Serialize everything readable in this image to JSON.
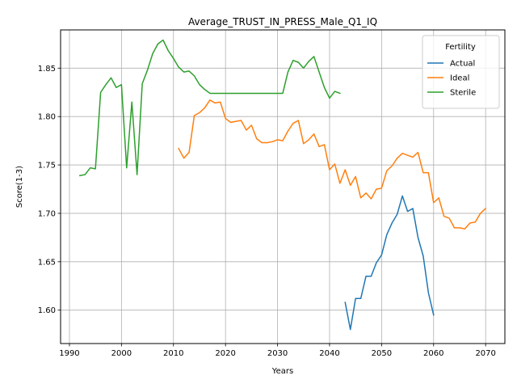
{
  "chart_data": {
    "type": "line",
    "title": "Average_TRUST_IN_PRESS_Male_Q1_IQ",
    "xlabel": "Years",
    "ylabel": "Score(1-3)",
    "xlim": [
      1988.3,
      2073.7
    ],
    "ylim": [
      1.5655,
      1.8895
    ],
    "xticks": [
      1990,
      2000,
      2010,
      2020,
      2030,
      2040,
      2050,
      2060,
      2070
    ],
    "yticks": [
      1.6,
      1.65,
      1.7,
      1.75,
      1.8,
      1.85
    ],
    "xtick_labels": [
      "1990",
      "2000",
      "2010",
      "2020",
      "2030",
      "2040",
      "2050",
      "2060",
      "2070"
    ],
    "ytick_labels": [
      "1.60",
      "1.65",
      "1.70",
      "1.75",
      "1.80",
      "1.85"
    ],
    "grid": true,
    "legend": {
      "title": "Fertility",
      "position": "top-right"
    },
    "series": [
      {
        "name": "Actual",
        "color": "#1f77b4",
        "x": [
          2043,
          2044,
          2045,
          2046,
          2047,
          2048,
          2049,
          2050,
          2051,
          2052,
          2053,
          2054,
          2055,
          2056,
          2057,
          2058,
          2059,
          2060
        ],
        "y": [
          1.608,
          1.58,
          1.612,
          1.612,
          1.635,
          1.635,
          1.649,
          1.657,
          1.678,
          1.69,
          1.699,
          1.718,
          1.702,
          1.705,
          1.675,
          1.656,
          1.618,
          1.595
        ]
      },
      {
        "name": "Ideal",
        "color": "#ff7f0e",
        "x": [
          2011,
          2012,
          2013,
          2014,
          2015,
          2016,
          2017,
          2018,
          2019,
          2020,
          2021,
          2022,
          2023,
          2024,
          2025,
          2026,
          2027,
          2028,
          2029,
          2030,
          2031,
          2032,
          2033,
          2034,
          2035,
          2036,
          2037,
          2038,
          2039,
          2040,
          2041,
          2042,
          2043,
          2044,
          2045,
          2046,
          2047,
          2048,
          2049,
          2050,
          2051,
          2052,
          2053,
          2054,
          2055,
          2056,
          2057,
          2058,
          2059,
          2060,
          2061,
          2062,
          2063,
          2064,
          2065,
          2066,
          2067,
          2068,
          2069,
          2070
        ],
        "y": [
          1.767,
          1.757,
          1.763,
          1.801,
          1.804,
          1.809,
          1.817,
          1.814,
          1.815,
          1.798,
          1.794,
          1.795,
          1.796,
          1.786,
          1.791,
          1.777,
          1.773,
          1.773,
          1.774,
          1.776,
          1.775,
          1.785,
          1.793,
          1.796,
          1.772,
          1.776,
          1.782,
          1.769,
          1.771,
          1.745,
          1.751,
          1.731,
          1.745,
          1.729,
          1.738,
          1.716,
          1.721,
          1.715,
          1.725,
          1.726,
          1.744,
          1.749,
          1.757,
          1.762,
          1.76,
          1.758,
          1.763,
          1.742,
          1.742,
          1.711,
          1.716,
          1.697,
          1.695,
          1.685,
          1.685,
          1.684,
          1.69,
          1.691,
          1.7,
          1.705
        ]
      },
      {
        "name": "Sterile",
        "color": "#2ca02c",
        "x": [
          1992,
          1993,
          1994,
          1995,
          1996,
          1997,
          1998,
          1999,
          2000,
          2001,
          2002,
          2003,
          2004,
          2005,
          2006,
          2007,
          2008,
          2009,
          2010,
          2011,
          2012,
          2013,
          2014,
          2015,
          2016,
          2017,
          2018,
          2019,
          2020,
          2021,
          2022,
          2023,
          2024,
          2025,
          2026,
          2027,
          2028,
          2029,
          2030,
          2031,
          2032,
          2033,
          2034,
          2035,
          2036,
          2037,
          2038,
          2039,
          2040,
          2041,
          2042
        ],
        "y": [
          1.739,
          1.74,
          1.747,
          1.746,
          1.825,
          1.833,
          1.84,
          1.83,
          1.833,
          1.747,
          1.815,
          1.74,
          1.834,
          1.848,
          1.865,
          1.875,
          1.879,
          1.868,
          1.86,
          1.851,
          1.846,
          1.847,
          1.842,
          1.833,
          1.828,
          1.824,
          1.824,
          1.824,
          1.824,
          1.824,
          1.824,
          1.824,
          1.824,
          1.824,
          1.824,
          1.824,
          1.824,
          1.824,
          1.824,
          1.824,
          1.846,
          1.858,
          1.856,
          1.85,
          1.857,
          1.862,
          1.846,
          1.83,
          1.819,
          1.826,
          1.824
        ]
      }
    ]
  }
}
